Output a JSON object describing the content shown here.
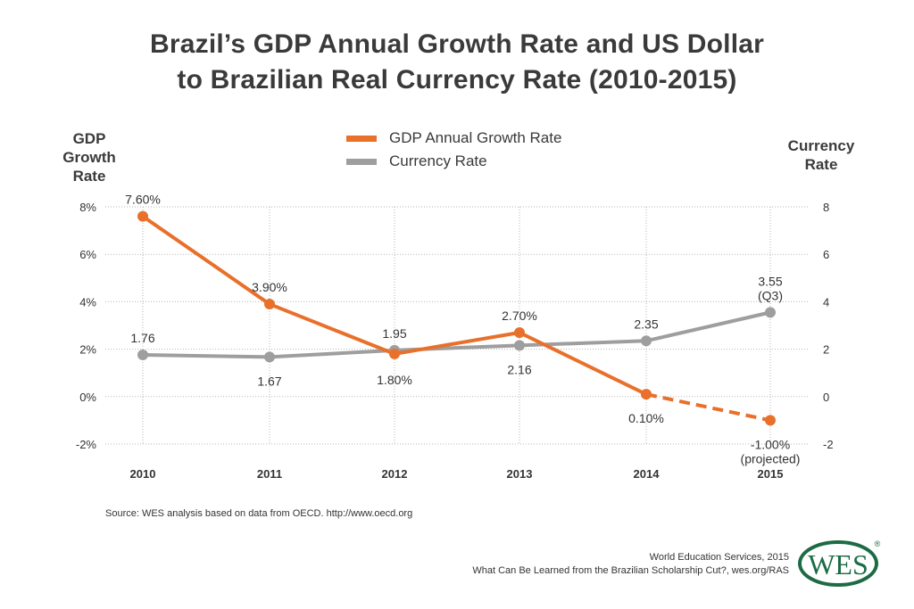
{
  "title_line1": "Brazil’s GDP Annual Growth Rate and US Dollar",
  "title_line2": "to Brazilian Real Currency Rate (2010-2015)",
  "left_axis_title": [
    "GDP",
    "Growth",
    "Rate"
  ],
  "right_axis_title": [
    "Currency",
    "Rate"
  ],
  "source": "Source: WES analysis based on data from OECD. http://www.oecd.org",
  "credits": {
    "line1": "World Education Services, 2015",
    "line2": "What Can Be Learned from the Brazilian Scholarship Cut?, wes.org/RAS"
  },
  "logo": {
    "text": "WES",
    "registered": "®"
  },
  "colors": {
    "gdp": "#e8702a",
    "currency": "#9e9e9e",
    "grid": "#b5b5b5"
  },
  "chart_data": {
    "type": "line",
    "title": "Brazil’s GDP Annual Growth Rate and US Dollar to Brazilian Real Currency Rate (2010-2015)",
    "categories": [
      "2010",
      "2011",
      "2012",
      "2013",
      "2014",
      "2015"
    ],
    "left_axis": {
      "label": "GDP Growth Rate",
      "ylim": [
        -2,
        8
      ],
      "ticks": [
        "8%",
        "6%",
        "4%",
        "2%",
        "0%",
        "-2%"
      ],
      "tick_values": [
        8,
        6,
        4,
        2,
        0,
        -2
      ]
    },
    "right_axis": {
      "label": "Currency Rate",
      "ylim": [
        -2,
        8
      ],
      "ticks": [
        "8",
        "6",
        "4",
        "2",
        "0",
        "-2"
      ],
      "tick_values": [
        8,
        6,
        4,
        2,
        0,
        -2
      ]
    },
    "grid": true,
    "series": [
      {
        "name": "GDP Annual Growth Rate",
        "axis": "left",
        "values": [
          7.6,
          3.9,
          1.8,
          2.7,
          0.1,
          -1.0
        ],
        "labels": [
          "7.60%",
          "3.90%",
          "1.80%",
          "2.70%",
          "0.10%",
          "-1.00%\n(projected)"
        ],
        "projected_from_index": 4
      },
      {
        "name": "Currency Rate",
        "axis": "right",
        "values": [
          1.76,
          1.67,
          1.95,
          2.16,
          2.35,
          3.55
        ],
        "labels": [
          "1.76",
          "1.67",
          "1.95",
          "2.16",
          "2.35",
          "3.55\n(Q3)"
        ]
      }
    ]
  }
}
